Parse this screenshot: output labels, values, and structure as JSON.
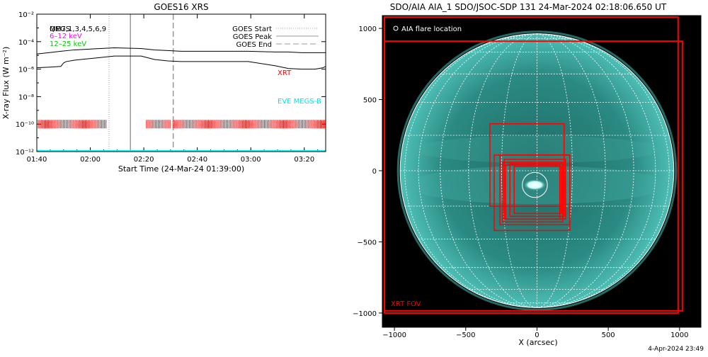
{
  "goes_panel": {
    "title": "GOES16 XRS",
    "ylabel": "X-ray Flux (W m⁻²)",
    "xlabel": "Start Time (24-Mar-24 01:39:00)",
    "legend_overlap_line1": "MEGS",
    "legend_overlap_line2": "QM7,1,3,4,5,6,9",
    "energy_label_1": "6–12 keV",
    "energy_label_2": "12–25 keV",
    "goes_start_label": "GOES Start",
    "goes_peak_label": "GOES Peak",
    "goes_end_label": "GOES End",
    "xrt_label": "XRT",
    "eve_label": "EVE MEGS-B"
  },
  "aia_panel": {
    "title": "SDO/AIA AIA_1 SDO/JSOC-SDP 131 24-Mar-2024 02:18:06.650 UT",
    "flare_location_label": "AIA flare location",
    "fov_label": "XRT FOV",
    "xlabel": "X (arcsec)"
  },
  "footer": {
    "date": "4-Apr-2024 23:49"
  },
  "colors": {
    "flux_line": "#000000",
    "xrt": "#ff0000",
    "eve": "#00ffff",
    "label_6_12": "#ff00ff",
    "label_12_25": "#00ff00",
    "sun": "#2e8f88",
    "grid": "#ffffff",
    "fov": "#ff0000"
  },
  "chart_data": [
    {
      "type": "line",
      "title": "GOES16 XRS",
      "xlabel": "Start Time (24-Mar-24 01:39:00)",
      "ylabel": "X-ray Flux (W m⁻²)",
      "x_ticks": [
        "01:40",
        "02:00",
        "02:20",
        "02:40",
        "03:00",
        "03:20"
      ],
      "x_ticks_minutes": [
        1,
        21,
        41,
        61,
        81,
        101
      ],
      "xlim_minutes": [
        1,
        109
      ],
      "y_log": true,
      "ylim": [
        1e-12,
        0.01
      ],
      "y_ticks": [
        "10⁻¹²",
        "10⁻¹⁰",
        "10⁻⁸",
        "10⁻⁶",
        "10⁻⁴",
        "10⁻²"
      ],
      "y_tick_exponents": [
        -12,
        -10,
        -8,
        -6,
        -4,
        -2
      ],
      "series": [
        {
          "name": "6–12 keV",
          "x_minutes": [
            1,
            6,
            10,
            11,
            12,
            15,
            20,
            30,
            40,
            45,
            50,
            55,
            60,
            70,
            80,
            90,
            95,
            100,
            105,
            108,
            109
          ],
          "log_flux": [
            -5.9,
            -5.85,
            -5.8,
            -5.55,
            -5.45,
            -5.35,
            -5.25,
            -5.05,
            -5.05,
            -5.3,
            -5.4,
            -5.45,
            -5.45,
            -5.45,
            -5.45,
            -5.75,
            -5.95,
            -6.0,
            -6.0,
            -5.9,
            -5.8
          ]
        },
        {
          "name": "12–25 keV",
          "x_minutes": [
            1,
            10,
            15,
            20,
            30,
            40,
            45,
            50,
            55,
            60,
            70,
            80,
            90,
            95,
            100,
            105,
            109
          ],
          "log_flux": [
            -4.9,
            -4.7,
            -4.6,
            -4.55,
            -4.45,
            -4.5,
            -4.6,
            -4.65,
            -4.7,
            -4.7,
            -4.7,
            -4.7,
            -4.75,
            -4.75,
            -4.8,
            -4.8,
            -4.8
          ]
        },
        {
          "name": "XRT",
          "segments_minutes": [
            [
              1,
              27
            ],
            [
              42,
              51
            ],
            [
              52,
              109
            ]
          ],
          "log_flux": -10
        },
        {
          "name": "EVE MEGS-B",
          "x_minutes": [
            1,
            109
          ],
          "log_flux": [
            -12,
            -12
          ]
        }
      ],
      "markers_minutes": {
        "goes_start": 28,
        "goes_peak": 36,
        "goes_end": 52
      }
    },
    {
      "type": "scatter",
      "title": "SDO/AIA AIA_1 SDO/JSOC-SDP 131 24-Mar-2024 02:18:06.650 UT",
      "xlabel": "X (arcsec)",
      "ylabel": "",
      "x_ticks": [
        -1000,
        -500,
        0,
        500,
        1000
      ],
      "y_ticks": [
        -1000,
        -500,
        0,
        500,
        1000
      ],
      "xlim": [
        -1085,
        1150
      ],
      "ylim": [
        -1100,
        1090
      ],
      "solar_radius_arcsec": 960,
      "flare_location": {
        "x": -15,
        "y": -100,
        "radius": 80
      },
      "fov_boxes": [
        {
          "x0": -1070,
          "x1": 1020,
          "y0": -985,
          "y1": 910
        },
        {
          "x0": -1070,
          "x1": 990,
          "y0": -1000,
          "y1": 1080
        },
        {
          "x0": -330,
          "x1": 190,
          "y0": -250,
          "y1": 330
        },
        {
          "x0": -300,
          "x1": 230,
          "y0": -420,
          "y1": 110
        },
        {
          "x0": -240,
          "x1": 180,
          "y0": -360,
          "y1": 60
        },
        {
          "x0": -230,
          "x1": 200,
          "y0": -340,
          "y1": 80
        },
        {
          "x0": -220,
          "x1": 160,
          "y0": -340,
          "y1": 40
        },
        {
          "x0": -190,
          "x1": 190,
          "y0": -320,
          "y1": 50
        },
        {
          "x0": -160,
          "x1": 170,
          "y0": -300,
          "y1": 30
        },
        {
          "x0": -260,
          "x1": 230,
          "y0": -380,
          "y1": 110
        }
      ],
      "grid_latitudes_deg": [
        -75,
        -60,
        -45,
        -30,
        -15,
        0,
        15,
        30,
        45,
        60,
        75
      ],
      "grid_longitudes_deg": [
        -75,
        -60,
        -45,
        -30,
        -15,
        0,
        15,
        30,
        45,
        60,
        75
      ]
    }
  ]
}
